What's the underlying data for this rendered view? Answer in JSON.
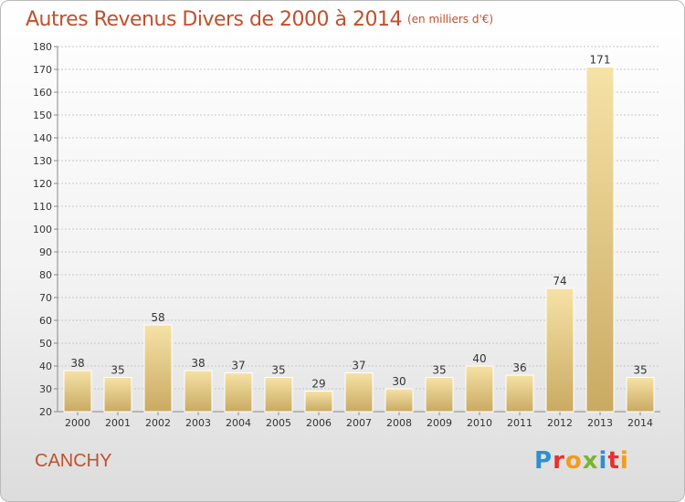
{
  "header": {
    "title": "Autres Revenus Divers de 2000 à 2014",
    "unit": "(en milliers d'€)"
  },
  "footer": {
    "commune": "CANCHY",
    "logo_text": "Proxiti",
    "logo_colors": [
      "#2e8fcf",
      "#e6312e",
      "#f39b1c",
      "#7ab532",
      "#2e8fcf",
      "#e6312e",
      "#f39b1c"
    ]
  },
  "colors": {
    "bar_light": "#f6e2a6",
    "bar_dark": "#c9aa62",
    "grid": "#c8c8c8",
    "axis": "#888888",
    "text": "#333333"
  },
  "chart_data": {
    "type": "bar",
    "title": "Autres Revenus Divers de 2000 à 2014",
    "categories": [
      "2000",
      "2001",
      "2002",
      "2003",
      "2004",
      "2005",
      "2006",
      "2007",
      "2008",
      "2009",
      "2010",
      "2011",
      "2012",
      "2013",
      "2014"
    ],
    "values": [
      38,
      35,
      58,
      38,
      37,
      35,
      29,
      37,
      30,
      35,
      40,
      36,
      74,
      171,
      35
    ],
    "ylim": [
      20,
      180
    ],
    "yticks": [
      20,
      30,
      40,
      50,
      60,
      70,
      80,
      90,
      100,
      110,
      120,
      130,
      140,
      150,
      160,
      170,
      180
    ],
    "grid": true
  }
}
